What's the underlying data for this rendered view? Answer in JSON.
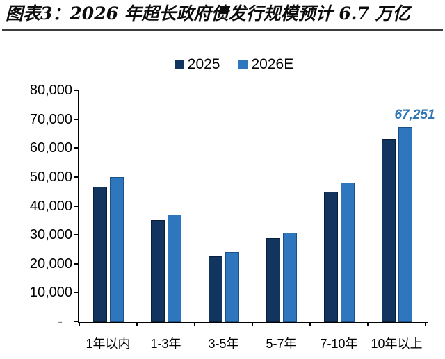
{
  "chart_data": {
    "type": "bar",
    "title": "图表3：2026 年超长政府债发行规模预计 6.7 万亿",
    "categories": [
      "1年以内",
      "1-3年",
      "3-5年",
      "5-7年",
      "7-10年",
      "10年以上"
    ],
    "series": [
      {
        "name": "2025",
        "color": "#123560",
        "values": [
          46600,
          35000,
          22500,
          28800,
          45000,
          63300
        ]
      },
      {
        "name": "2026E",
        "color": "#2E77BE",
        "values": [
          50000,
          37000,
          24000,
          30700,
          48000,
          67251
        ]
      }
    ],
    "xlabel": "",
    "ylabel": "",
    "ylim": [
      0,
      80000
    ],
    "ytick_step": 10000,
    "ytick_labels": [
      "80,000",
      "70,000",
      "60,000",
      "50,000",
      "40,000",
      "30,000",
      "20,000",
      "10,000",
      "-"
    ],
    "grid": false,
    "legend_position": "top-center",
    "annotation": {
      "text": "67,251",
      "series": "2026E",
      "category": "10年以上",
      "color": "#2E75B6"
    }
  },
  "colors": {
    "series_2025": "#123560",
    "series_2026e": "#2E77BE",
    "annotation_text": "#2E75B6",
    "axis": "#000000",
    "title_text": "#0d0d0d",
    "divider": "#3d3d3d"
  }
}
